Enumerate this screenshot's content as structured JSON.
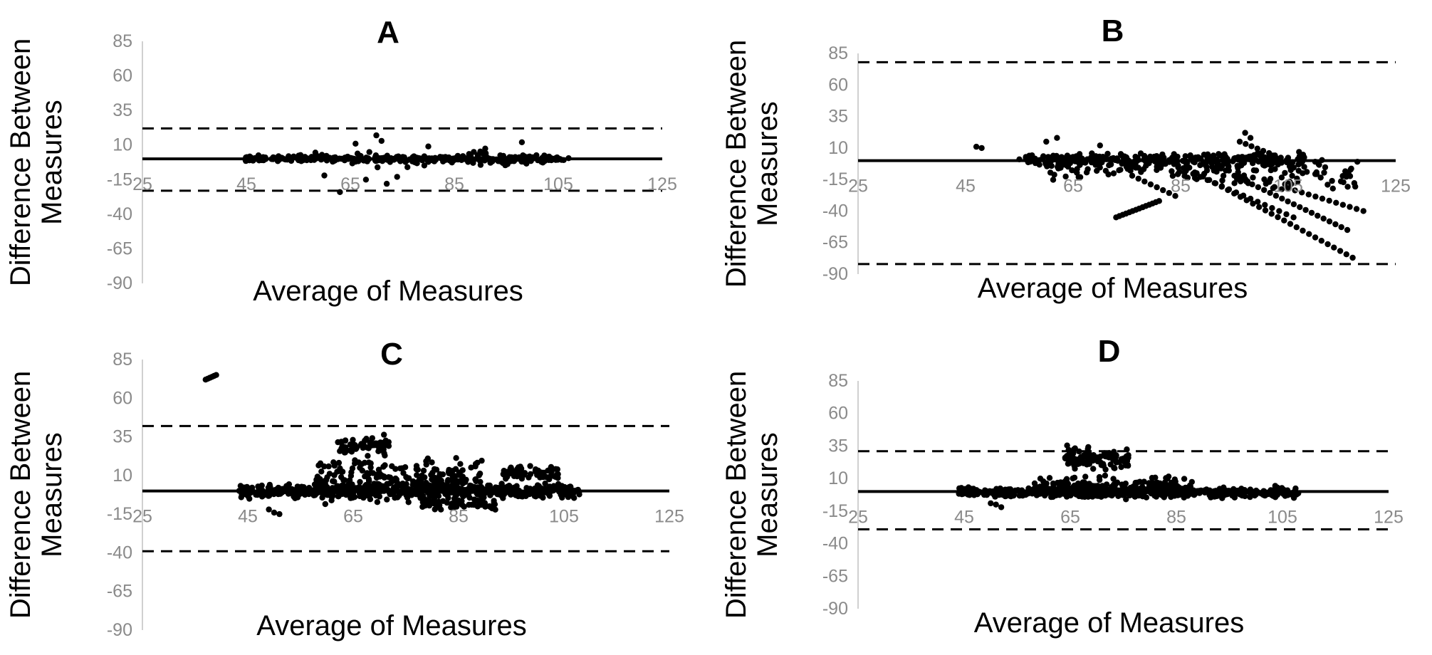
{
  "chart_data": [
    {
      "type": "scatter",
      "title": "A",
      "xlabel": "Average of Measures",
      "ylabel": [
        "Difference Between",
        "Measures"
      ],
      "xlim": [
        25,
        125
      ],
      "ylim": [
        -90,
        85
      ],
      "xticks": [
        25,
        45,
        65,
        85,
        105,
        125
      ],
      "yticks": [
        85,
        60,
        35,
        10,
        -15,
        -40,
        -65,
        -90
      ],
      "mean_line": 0,
      "limits_of_agreement": [
        22,
        -23
      ],
      "clusters": [
        {
          "x": [
            44,
            107
          ],
          "y": [
            -3,
            3
          ],
          "n": 320
        },
        {
          "x": [
            55,
            100
          ],
          "y": [
            -10,
            10
          ],
          "n": 60
        }
      ],
      "points": [
        [
          66,
          11
        ],
        [
          70,
          17
        ],
        [
          71,
          13
        ],
        [
          63,
          -24
        ],
        [
          72,
          -18
        ],
        [
          74,
          -13
        ],
        [
          98,
          12
        ],
        [
          68,
          -15
        ],
        [
          60,
          -12
        ],
        [
          80,
          9
        ]
      ],
      "streaks": []
    },
    {
      "type": "scatter",
      "title": "B",
      "xlabel": "Average of Measures",
      "ylabel": [
        "Difference Between",
        "Measures"
      ],
      "xlim": [
        25,
        125
      ],
      "ylim": [
        -90,
        85
      ],
      "xticks": [
        25,
        45,
        65,
        85,
        105,
        125
      ],
      "yticks": [
        85,
        60,
        35,
        10,
        -15,
        -40,
        -65,
        -90
      ],
      "mean_line": 0,
      "limits_of_agreement": [
        78,
        -82
      ],
      "clusters": [
        {
          "x": [
            56,
            108
          ],
          "y": [
            -6,
            8
          ],
          "n": 300
        },
        {
          "x": [
            60,
            96
          ],
          "y": [
            -20,
            6
          ],
          "n": 80
        },
        {
          "x": [
            95,
            118
          ],
          "y": [
            -32,
            4
          ],
          "n": 60
        }
      ],
      "points": [
        [
          47,
          11
        ],
        [
          48,
          10
        ],
        [
          62,
          18
        ],
        [
          60,
          15
        ],
        [
          97,
          22
        ],
        [
          98,
          18
        ],
        [
          55,
          1
        ],
        [
          58,
          -2
        ],
        [
          70,
          12
        ]
      ],
      "streaks": [
        {
          "from": [
            73,
            -45
          ],
          "to": [
            81,
            -32
          ],
          "n": 14
        },
        {
          "from": [
            88,
            -10
          ],
          "to": [
            117,
            -77
          ],
          "n": 26
        },
        {
          "from": [
            95,
            -12
          ],
          "to": [
            116,
            -55
          ],
          "n": 20
        },
        {
          "from": [
            86,
            -8
          ],
          "to": [
            106,
            -45
          ],
          "n": 16
        },
        {
          "from": [
            105,
            -22
          ],
          "to": [
            119,
            -40
          ],
          "n": 12
        },
        {
          "from": [
            96,
            15
          ],
          "to": [
            108,
            -5
          ],
          "n": 12
        },
        {
          "from": [
            76,
            -12
          ],
          "to": [
            84,
            -28
          ],
          "n": 8
        }
      ]
    },
    {
      "type": "scatter",
      "title": "C",
      "xlabel": "Average of Measures",
      "ylabel": [
        "Difference Between",
        "Measures"
      ],
      "xlim": [
        25,
        125
      ],
      "ylim": [
        -90,
        85
      ],
      "xticks": [
        25,
        45,
        65,
        85,
        105,
        125
      ],
      "yticks": [
        85,
        60,
        35,
        10,
        -15,
        -40,
        -65,
        -90
      ],
      "mean_line": 0,
      "limits_of_agreement": [
        42,
        -39
      ],
      "clusters": [
        {
          "x": [
            43,
            108
          ],
          "y": [
            -6,
            6
          ],
          "n": 520
        },
        {
          "x": [
            58,
            90
          ],
          "y": [
            -14,
            26
          ],
          "n": 260
        },
        {
          "x": [
            62,
            72
          ],
          "y": [
            20,
            38
          ],
          "n": 60
        },
        {
          "x": [
            93,
            104
          ],
          "y": [
            5,
            18
          ],
          "n": 60
        },
        {
          "x": [
            78,
            92
          ],
          "y": [
            -14,
            -4
          ],
          "n": 50
        }
      ],
      "points": [
        [
          50,
          -14
        ],
        [
          51,
          -15
        ],
        [
          49,
          -12
        ]
      ],
      "streaks": [
        {
          "from": [
            37,
            72
          ],
          "to": [
            39,
            75
          ],
          "n": 6
        }
      ]
    },
    {
      "type": "scatter",
      "title": "D",
      "xlabel": "Average of Measures",
      "ylabel": [
        "Difference Between",
        "Measures"
      ],
      "xlim": [
        25,
        125
      ],
      "ylim": [
        -90,
        85
      ],
      "xticks": [
        25,
        45,
        65,
        85,
        105,
        125
      ],
      "yticks": [
        85,
        60,
        35,
        10,
        -15,
        -40,
        -65,
        -90
      ],
      "mean_line": 0,
      "limits_of_agreement": [
        31,
        -29
      ],
      "clusters": [
        {
          "x": [
            44,
            108
          ],
          "y": [
            -6,
            5
          ],
          "n": 560
        },
        {
          "x": [
            58,
            88
          ],
          "y": [
            -8,
            14
          ],
          "n": 200
        },
        {
          "x": [
            64,
            76
          ],
          "y": [
            14,
            38
          ],
          "n": 110
        }
      ],
      "points": [
        [
          51,
          -10
        ],
        [
          52,
          -12
        ],
        [
          50,
          -9
        ]
      ],
      "streaks": []
    }
  ]
}
